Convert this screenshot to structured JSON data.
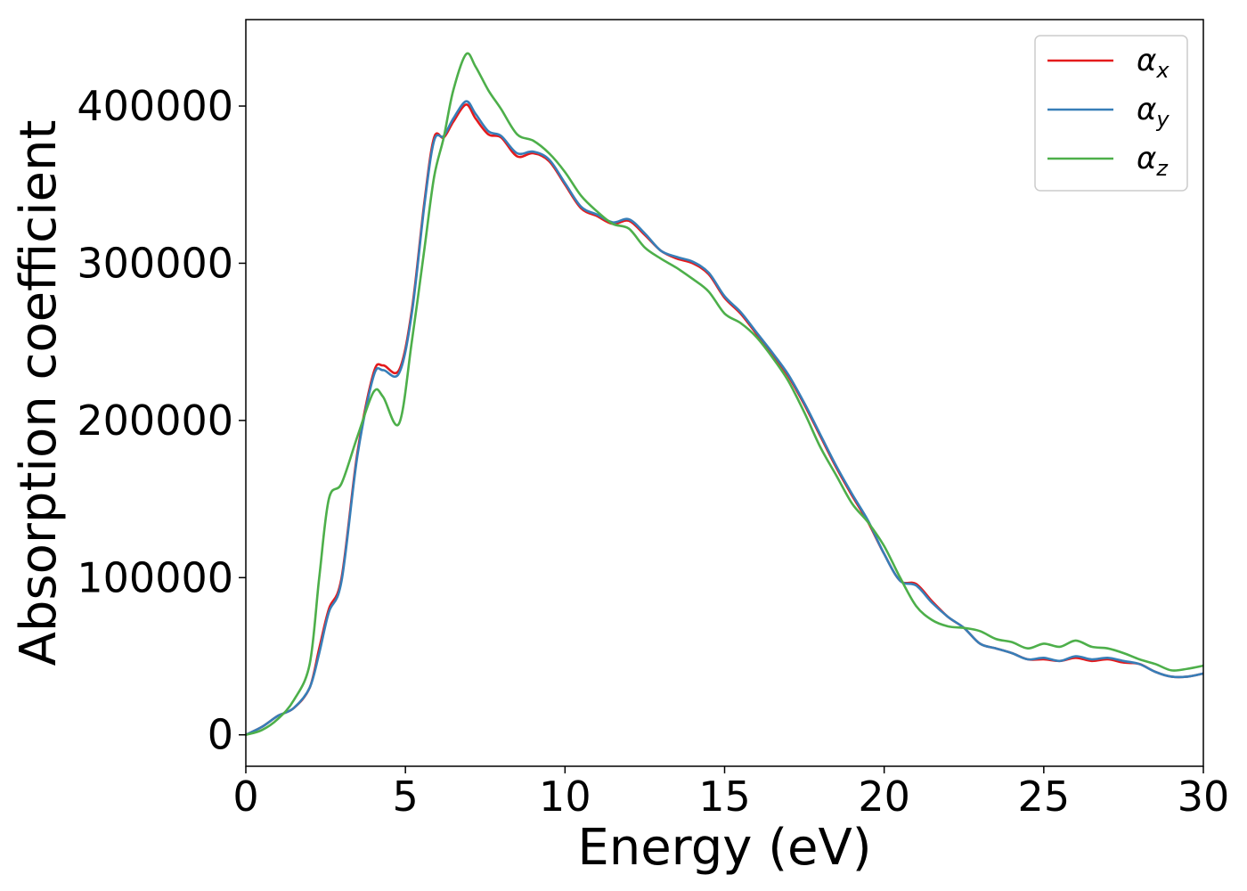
{
  "chart_data": {
    "type": "line",
    "xlabel": "Energy (eV)",
    "ylabel": "Absorption coefficient",
    "xlim": [
      0,
      30
    ],
    "ylim": [
      -20000,
      455000
    ],
    "xticks": [
      0,
      5,
      10,
      15,
      20,
      25,
      30
    ],
    "yticks": [
      0,
      100000,
      200000,
      300000,
      400000
    ],
    "grid": false,
    "legend_position": "top-right",
    "series": [
      {
        "name": "α",
        "subscript": "x",
        "color": "#e41a1c",
        "x": [
          0,
          0.5,
          1,
          1.5,
          2,
          2.3,
          2.6,
          3,
          3.5,
          4,
          4.3,
          4.8,
          5.2,
          5.6,
          5.9,
          6.2,
          6.5,
          6.9,
          7.2,
          7.6,
          8,
          8.5,
          9,
          9.5,
          10,
          10.5,
          11,
          11.5,
          12,
          12.5,
          13,
          13.5,
          14,
          14.5,
          15,
          15.5,
          16,
          16.5,
          17,
          17.5,
          18,
          18.5,
          19,
          19.5,
          20,
          20.5,
          21,
          21.5,
          22,
          22.5,
          23,
          23.5,
          24,
          24.5,
          25,
          25.5,
          26,
          26.5,
          27,
          27.5,
          28,
          28.5,
          29,
          29.5,
          30
        ],
        "y": [
          0,
          5000,
          12000,
          17000,
          30000,
          55000,
          80000,
          100000,
          180000,
          230000,
          235000,
          232000,
          270000,
          340000,
          380000,
          380000,
          390000,
          401000,
          392000,
          382000,
          380000,
          368000,
          370000,
          365000,
          350000,
          335000,
          330000,
          325000,
          327000,
          318000,
          308000,
          303000,
          300000,
          293000,
          278000,
          268000,
          255000,
          242000,
          228000,
          210000,
          190000,
          170000,
          152000,
          135000,
          115000,
          98000,
          96000,
          85000,
          75000,
          68000,
          58000,
          55000,
          52000,
          48000,
          48000,
          47000,
          49000,
          47000,
          48000,
          46000,
          45000,
          40000,
          37000,
          37000,
          39000
        ]
      },
      {
        "name": "α",
        "subscript": "y",
        "color": "#377eb8",
        "x": [
          0,
          0.5,
          1,
          1.5,
          2,
          2.3,
          2.6,
          3,
          3.5,
          4,
          4.3,
          4.8,
          5.2,
          5.6,
          5.9,
          6.2,
          6.5,
          6.9,
          7.2,
          7.6,
          8,
          8.5,
          9,
          9.5,
          10,
          10.5,
          11,
          11.5,
          12,
          12.5,
          13,
          13.5,
          14,
          14.5,
          15,
          15.5,
          16,
          16.5,
          17,
          17.5,
          18,
          18.5,
          19,
          19.5,
          20,
          20.5,
          21,
          21.5,
          22,
          22.5,
          23,
          23.5,
          24,
          24.5,
          25,
          25.5,
          26,
          26.5,
          27,
          27.5,
          28,
          28.5,
          29,
          29.5,
          30
        ],
        "y": [
          0,
          5000,
          12000,
          17000,
          30000,
          52000,
          78000,
          98000,
          178000,
          228000,
          232000,
          230000,
          268000,
          338000,
          378000,
          381000,
          392000,
          403000,
          395000,
          384000,
          381000,
          370000,
          371000,
          366000,
          351000,
          336000,
          331000,
          326000,
          328000,
          319000,
          308000,
          304000,
          301000,
          294000,
          279000,
          269000,
          256000,
          243000,
          229000,
          211000,
          191000,
          171000,
          153000,
          136000,
          115000,
          98000,
          95000,
          84000,
          75000,
          68000,
          58000,
          55000,
          52000,
          48000,
          49000,
          47000,
          50000,
          48000,
          49000,
          47000,
          45000,
          40000,
          37000,
          37000,
          39000
        ]
      },
      {
        "name": "α",
        "subscript": "z",
        "color": "#4daf4a",
        "x": [
          0,
          0.5,
          1,
          1.5,
          2,
          2.3,
          2.6,
          3,
          3.5,
          4,
          4.3,
          4.8,
          5.2,
          5.6,
          5.9,
          6.2,
          6.5,
          6.9,
          7.2,
          7.6,
          8,
          8.5,
          9,
          9.5,
          10,
          10.5,
          11,
          11.5,
          12,
          12.5,
          13,
          13.5,
          14,
          14.5,
          15,
          15.5,
          16,
          16.5,
          17,
          17.5,
          18,
          18.5,
          19,
          19.5,
          20,
          20.5,
          21,
          21.5,
          22,
          22.5,
          23,
          23.5,
          24,
          24.5,
          25,
          25.5,
          26,
          26.5,
          27,
          27.5,
          28,
          28.5,
          29,
          29.5,
          30
        ],
        "y": [
          0,
          3000,
          10000,
          22000,
          45000,
          100000,
          150000,
          160000,
          190000,
          218000,
          215000,
          198000,
          250000,
          310000,
          355000,
          380000,
          410000,
          433000,
          425000,
          410000,
          398000,
          382000,
          378000,
          370000,
          358000,
          343000,
          333000,
          325000,
          322000,
          310000,
          303000,
          297000,
          290000,
          282000,
          268000,
          262000,
          253000,
          240000,
          225000,
          205000,
          183000,
          165000,
          147000,
          135000,
          120000,
          100000,
          82000,
          73000,
          69000,
          68000,
          66000,
          61000,
          59000,
          55000,
          58000,
          56000,
          60000,
          56000,
          55000,
          52000,
          48000,
          45000,
          41000,
          42000,
          44000
        ]
      }
    ]
  }
}
